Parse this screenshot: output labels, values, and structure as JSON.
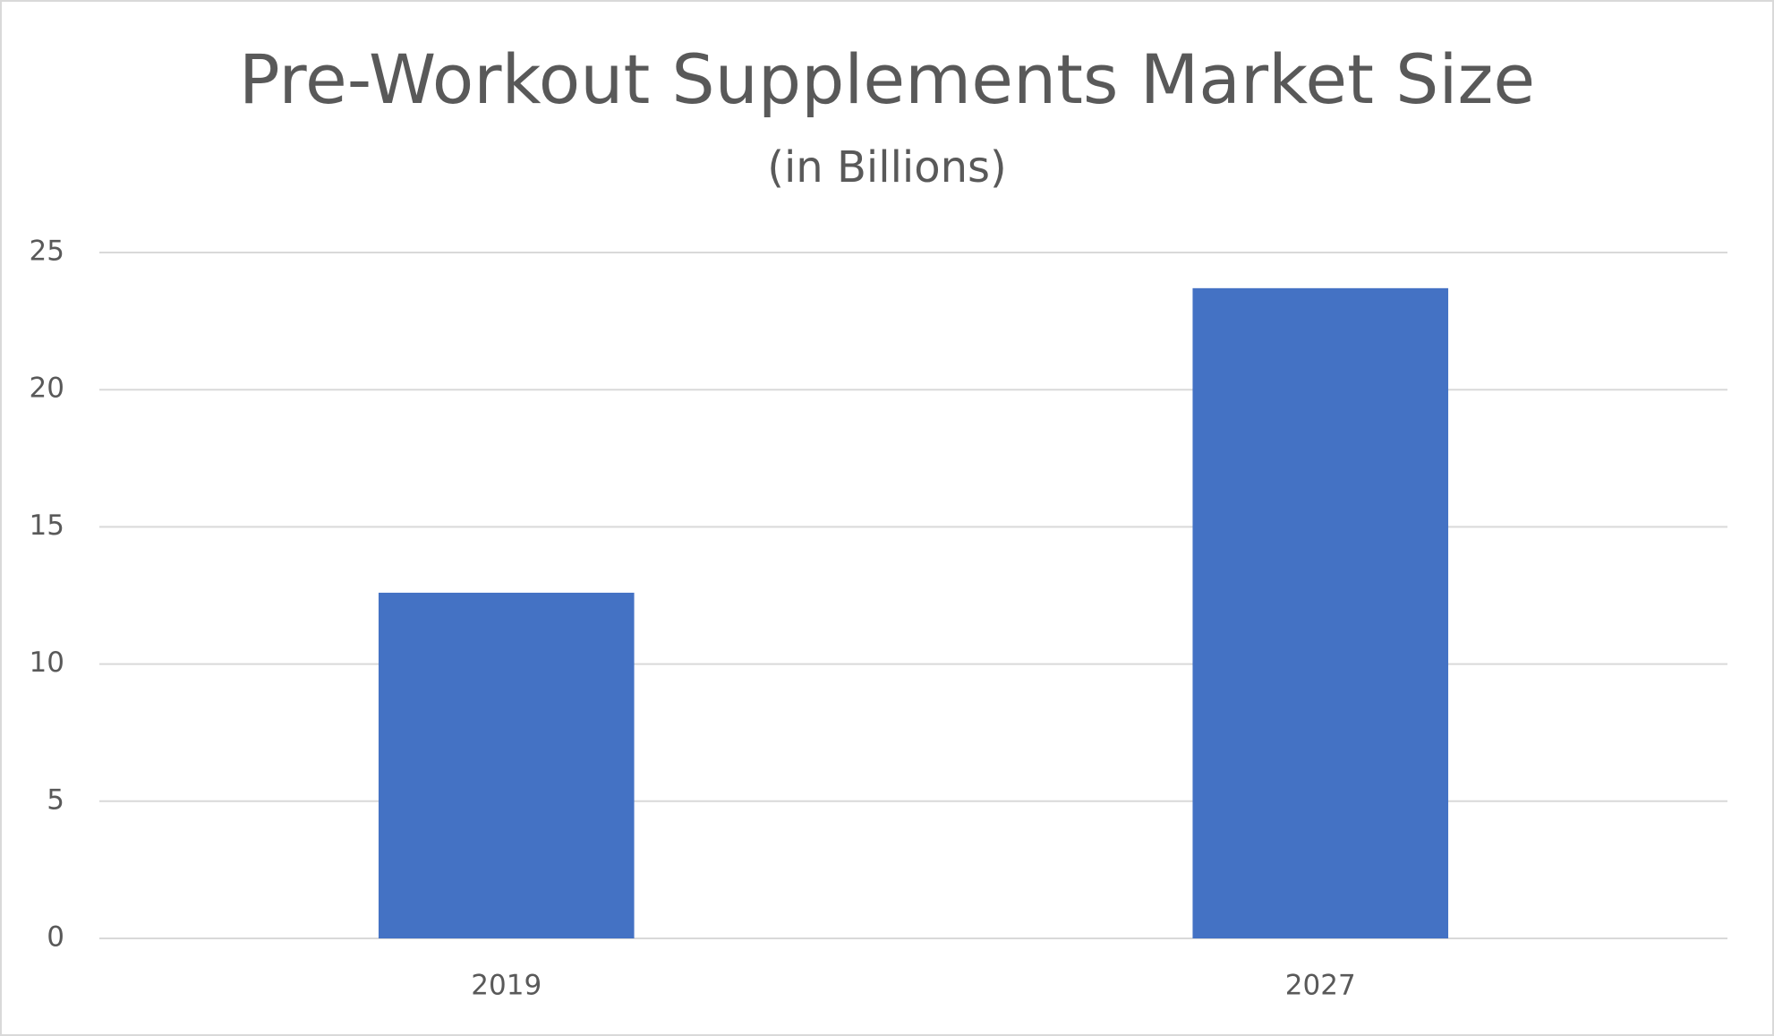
{
  "chart_data": {
    "type": "bar",
    "title": "Pre-Workout Supplements Market Size",
    "subtitle": "(in Billions)",
    "categories": [
      "2019",
      "2027"
    ],
    "values": [
      12.6,
      23.7
    ],
    "color": "#4472c4",
    "ylim": [
      0,
      25
    ],
    "yticks": [
      0,
      5,
      10,
      15,
      20,
      25
    ],
    "grid": true
  }
}
